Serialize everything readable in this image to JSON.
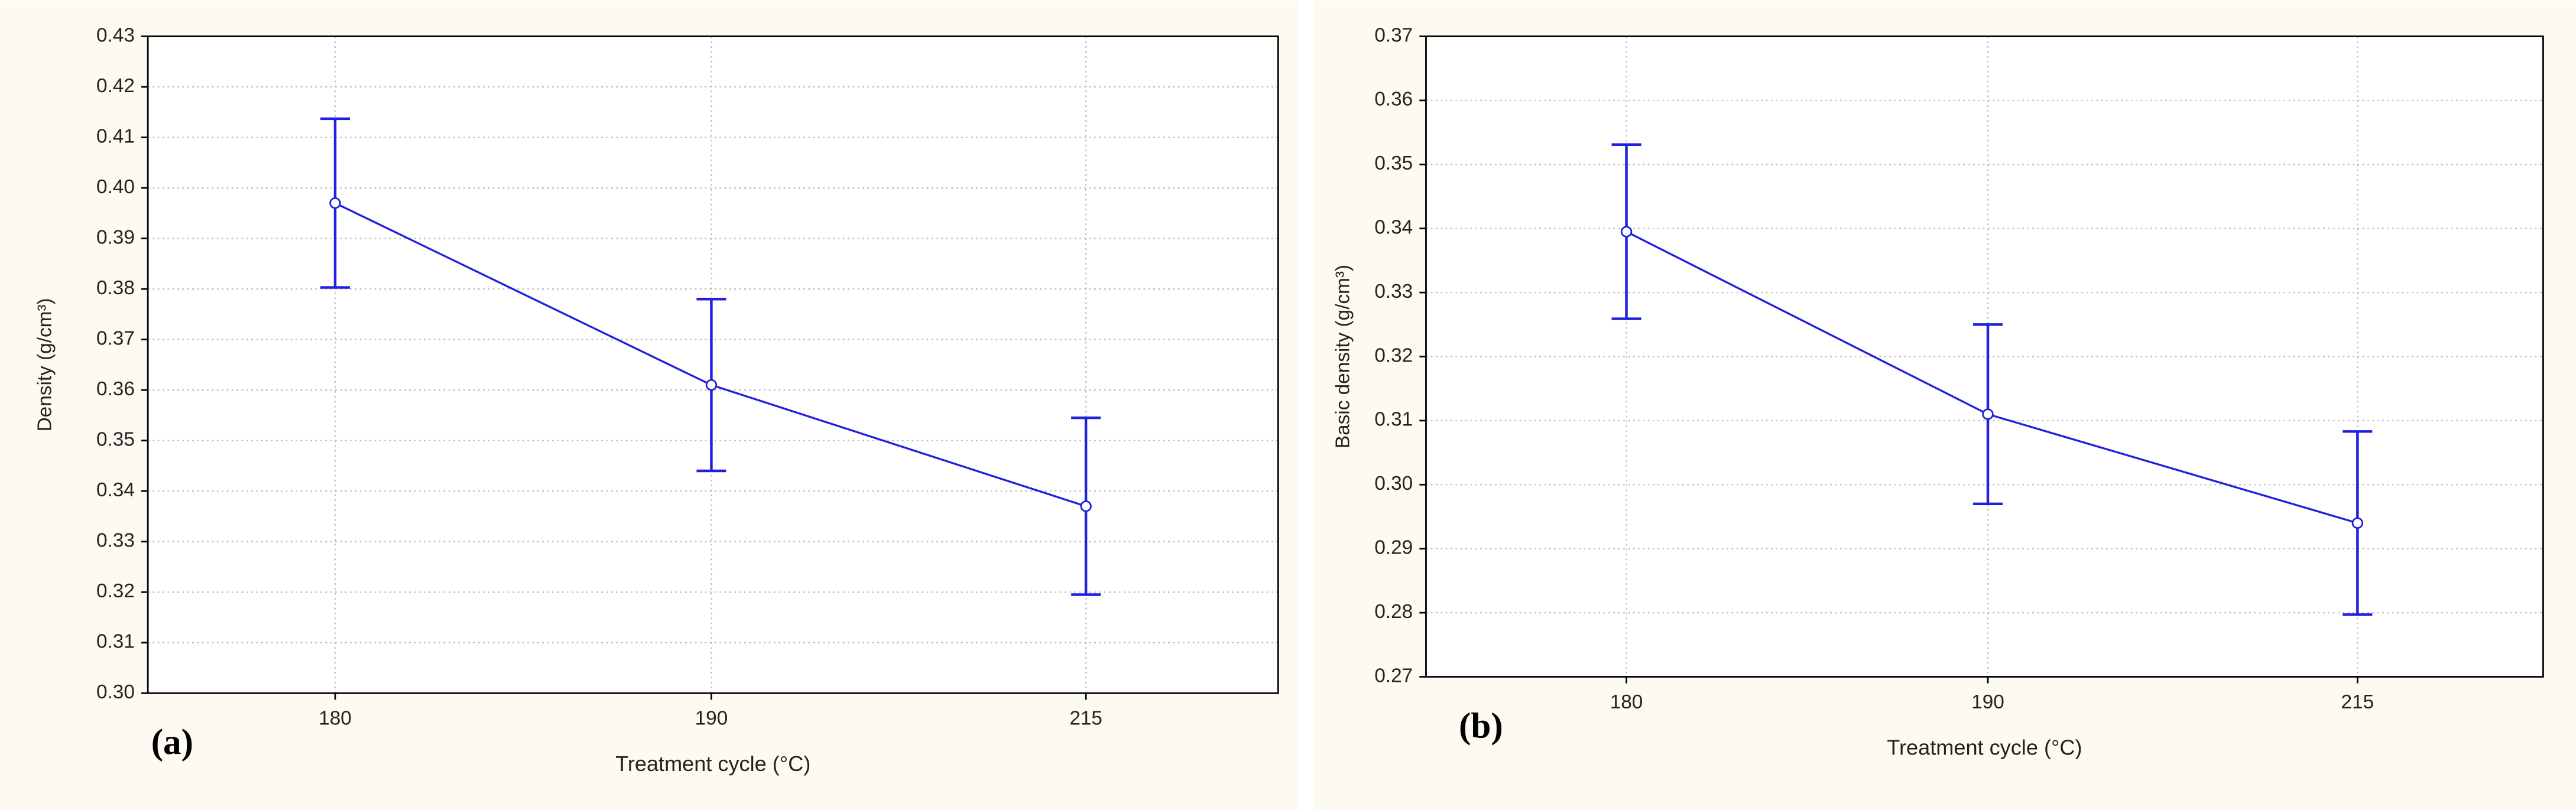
{
  "chart_data": [
    {
      "type": "line",
      "panel_label": "(a)",
      "xlabel": "Treatment cycle (°C)",
      "ylabel": "Density (g/cm³)",
      "categories": [
        "180",
        "190",
        "215"
      ],
      "values": [
        0.397,
        0.361,
        0.337
      ],
      "errors": [
        0.0167,
        0.017,
        0.0175
      ],
      "color": "#2020e0",
      "grid": true,
      "ylim": [
        0.3,
        0.43
      ],
      "yticks": [
        {
          "value": 0.3,
          "label": "0.30"
        },
        0.31,
        0.32,
        0.33,
        0.34,
        0.35,
        0.36,
        0.37,
        0.38,
        0.39,
        {
          "value": 0.4,
          "label": "0.40"
        },
        0.41,
        0.42,
        0.43
      ]
    },
    {
      "type": "line",
      "panel_label": "(b)",
      "xlabel": "Treatment cycle (°C)",
      "ylabel": "Basic density (g/cm³)",
      "categories": [
        "180",
        "190",
        "215"
      ],
      "values": [
        0.3395,
        0.311,
        0.294
      ],
      "errors": [
        0.0136,
        0.014,
        0.0143
      ],
      "color": "#2020e0",
      "grid": true,
      "ylim": [
        0.27,
        0.37
      ],
      "yticks": [
        0.27,
        0.28,
        0.29,
        {
          "value": 0.3,
          "label": "0.30"
        },
        0.31,
        0.32,
        0.33,
        0.34,
        0.35,
        0.36,
        0.37
      ]
    }
  ]
}
